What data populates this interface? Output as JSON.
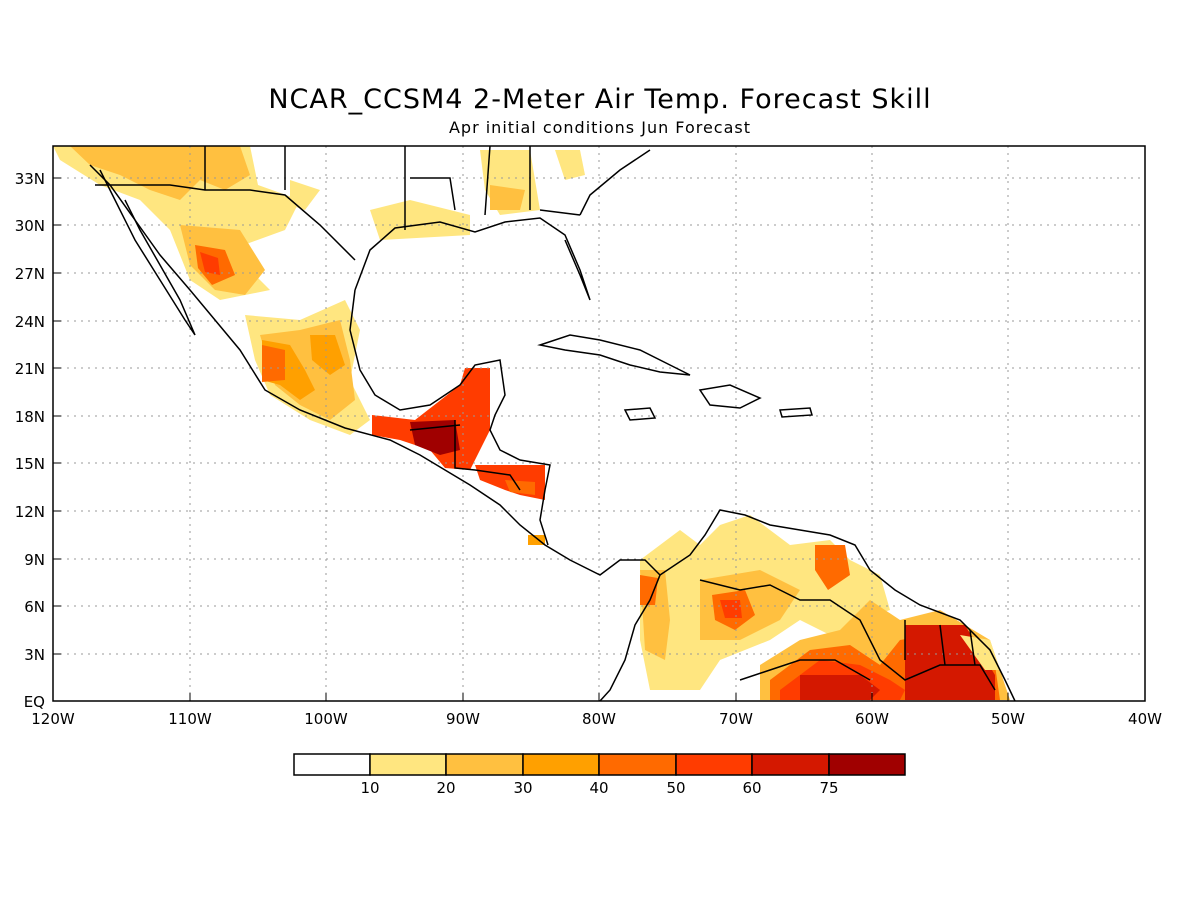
{
  "title": "NCAR_CCSM4 2-Meter Air Temp. Forecast Skill",
  "subtitle": "Apr initial conditions  Jun Forecast",
  "map": {
    "lon_range": [
      -120,
      -40
    ],
    "lat_range": [
      0,
      35
    ],
    "x_ticks": [
      "120W",
      "110W",
      "100W",
      "90W",
      "80W",
      "70W",
      "60W",
      "50W",
      "40W"
    ],
    "y_ticks": [
      "EQ",
      "3N",
      "6N",
      "9N",
      "12N",
      "15N",
      "18N",
      "21N",
      "24N",
      "27N",
      "30N",
      "33N"
    ],
    "grid": "dotted"
  },
  "legend": {
    "labels": [
      "10",
      "20",
      "30",
      "40",
      "50",
      "60",
      "75"
    ],
    "colors": [
      "#ffffff",
      "#ffe680",
      "#ffc040",
      "#ffa000",
      "#ff6a00",
      "#ff3c00",
      "#d41800",
      "#a00000"
    ]
  }
}
